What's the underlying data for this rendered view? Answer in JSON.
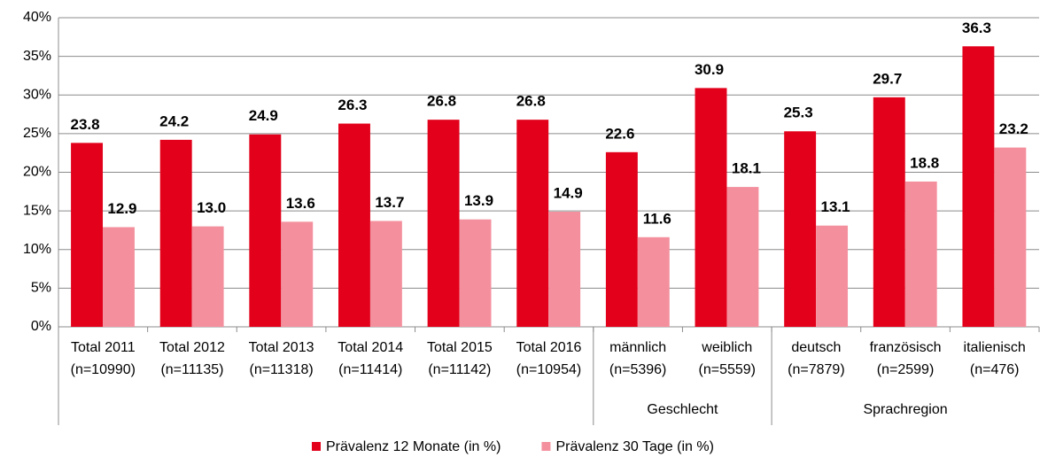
{
  "chart_data": {
    "type": "bar",
    "categories": [
      [
        "Total 2011",
        "(n=10990)"
      ],
      [
        "Total 2012",
        "(n=11135)"
      ],
      [
        "Total 2013",
        "(n=11318)"
      ],
      [
        "Total 2014",
        "(n=11414)"
      ],
      [
        "Total 2015",
        "(n=11142)"
      ],
      [
        "Total 2016",
        "(n=10954)"
      ],
      [
        "männlich",
        "(n=5396)"
      ],
      [
        "weiblich",
        "(n=5559)"
      ],
      [
        "deutsch",
        "(n=7879)"
      ],
      [
        "französisch",
        "(n=2599)"
      ],
      [
        "italienisch",
        "(n=476)"
      ]
    ],
    "category_groups": [
      null,
      null,
      null,
      null,
      null,
      null,
      "Geschlecht",
      "Geschlecht",
      "Sprachregion",
      "Sprachregion",
      "Sprachregion"
    ],
    "series": [
      {
        "name": "Prävalenz 12 Monate (in %)",
        "color": "#e2001a",
        "values": [
          23.8,
          24.2,
          24.9,
          26.3,
          26.8,
          26.8,
          22.6,
          30.9,
          25.3,
          29.7,
          36.3
        ]
      },
      {
        "name": "Prävalenz 30 Tage (in %)",
        "color": "#f4909e",
        "values": [
          12.9,
          13.0,
          13.6,
          13.7,
          13.9,
          14.9,
          11.6,
          18.1,
          13.1,
          18.8,
          23.2
        ],
        "value_labels": [
          "12.9",
          "13.0",
          "13.6",
          "13.7",
          "13.9",
          "14.9",
          "11.6",
          "18.1",
          "13.1",
          "18.8",
          "23.2"
        ]
      }
    ],
    "ylim": [
      0,
      40
    ],
    "yticks": [
      {
        "value": 0,
        "label": "0%"
      },
      {
        "value": 5,
        "label": "5%"
      },
      {
        "value": 10,
        "label": "10%"
      },
      {
        "value": 15,
        "label": "15%"
      },
      {
        "value": 20,
        "label": "20%"
      },
      {
        "value": 25,
        "label": "25%"
      },
      {
        "value": 30,
        "label": "30%"
      },
      {
        "value": 35,
        "label": "35%"
      },
      {
        "value": 40,
        "label": "40%"
      }
    ],
    "grid": true,
    "legend": "bottom"
  }
}
